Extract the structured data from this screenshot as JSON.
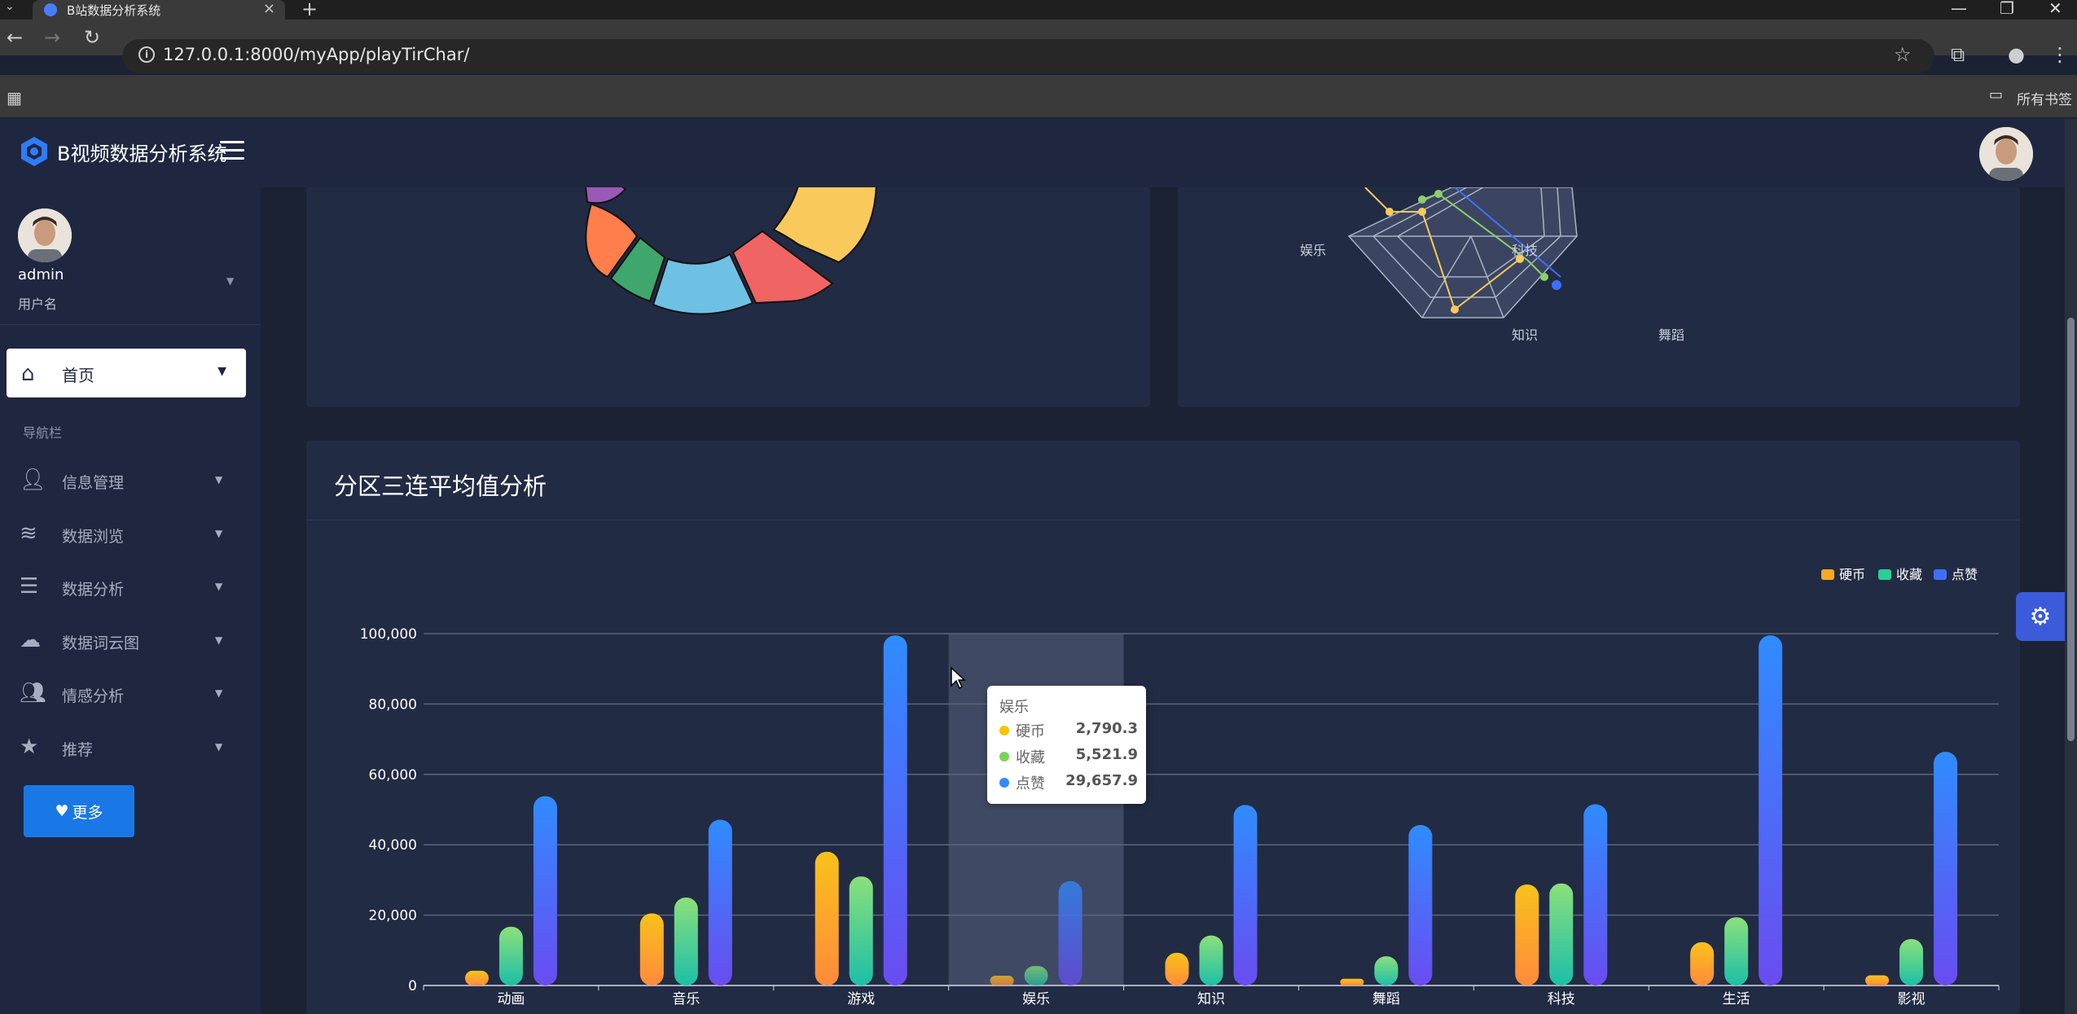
{
  "browser": {
    "tab_title": "B站数据分析系统",
    "url": "127.0.0.1:8000/myApp/playTirChar/",
    "bookmarks_label": "所有书签"
  },
  "app": {
    "brand": "B视频数据分析系统",
    "user": {
      "name": "admin",
      "role": "用户名"
    },
    "home_label": "首页",
    "nav_section": "导航栏",
    "nav_items": [
      {
        "label": "信息管理",
        "icon": "user-icon"
      },
      {
        "label": "数据浏览",
        "icon": "layers-icon"
      },
      {
        "label": "数据分析",
        "icon": "list-icon"
      },
      {
        "label": "数据词云图",
        "icon": "cloud-icon"
      },
      {
        "label": "情感分析",
        "icon": "people-icon"
      },
      {
        "label": "推荐",
        "icon": "star-icon"
      }
    ],
    "more_button": "更多"
  },
  "radar_labels": [
    "娱乐",
    "知识",
    "舞蹈",
    "科技"
  ],
  "bar_card_title": "分区三连平均值分析",
  "tooltip": {
    "title": "娱乐",
    "rows": [
      {
        "name": "硬币",
        "value": "2,790.3",
        "color": "#f5c400"
      },
      {
        "name": "收藏",
        "value": "5,521.9",
        "color": "#7cd35a"
      },
      {
        "name": "点赞",
        "value": "29,657.9",
        "color": "#2f8cff"
      }
    ]
  },
  "colors": {
    "coin": "#f7a825",
    "fav": "#2ccf97",
    "like": "#3d6fff",
    "accent": "#1a78e6"
  },
  "chart_data": {
    "type": "bar",
    "categories": [
      "动画",
      "音乐",
      "游戏",
      "娱乐",
      "知识",
      "舞蹈",
      "科技",
      "生活",
      "影视"
    ],
    "series": [
      {
        "name": "硬币",
        "values": [
          4200,
          20500,
          38000,
          2790.3,
          9300,
          1900,
          28700,
          12300,
          2900
        ]
      },
      {
        "name": "收藏",
        "values": [
          16700,
          25000,
          31000,
          5521.9,
          14200,
          8300,
          29000,
          19400,
          13200
        ]
      },
      {
        "name": "点赞",
        "values": [
          53800,
          47100,
          99500,
          29657.9,
          51300,
          45600,
          51500,
          99500,
          66400
        ]
      }
    ],
    "ylim": [
      0,
      100000
    ],
    "yticks": [
      "0",
      "20,000",
      "40,000",
      "60,000",
      "80,000",
      "100,000"
    ],
    "legend_position": "top-right",
    "highlighted_category": "娱乐",
    "grid": true
  }
}
